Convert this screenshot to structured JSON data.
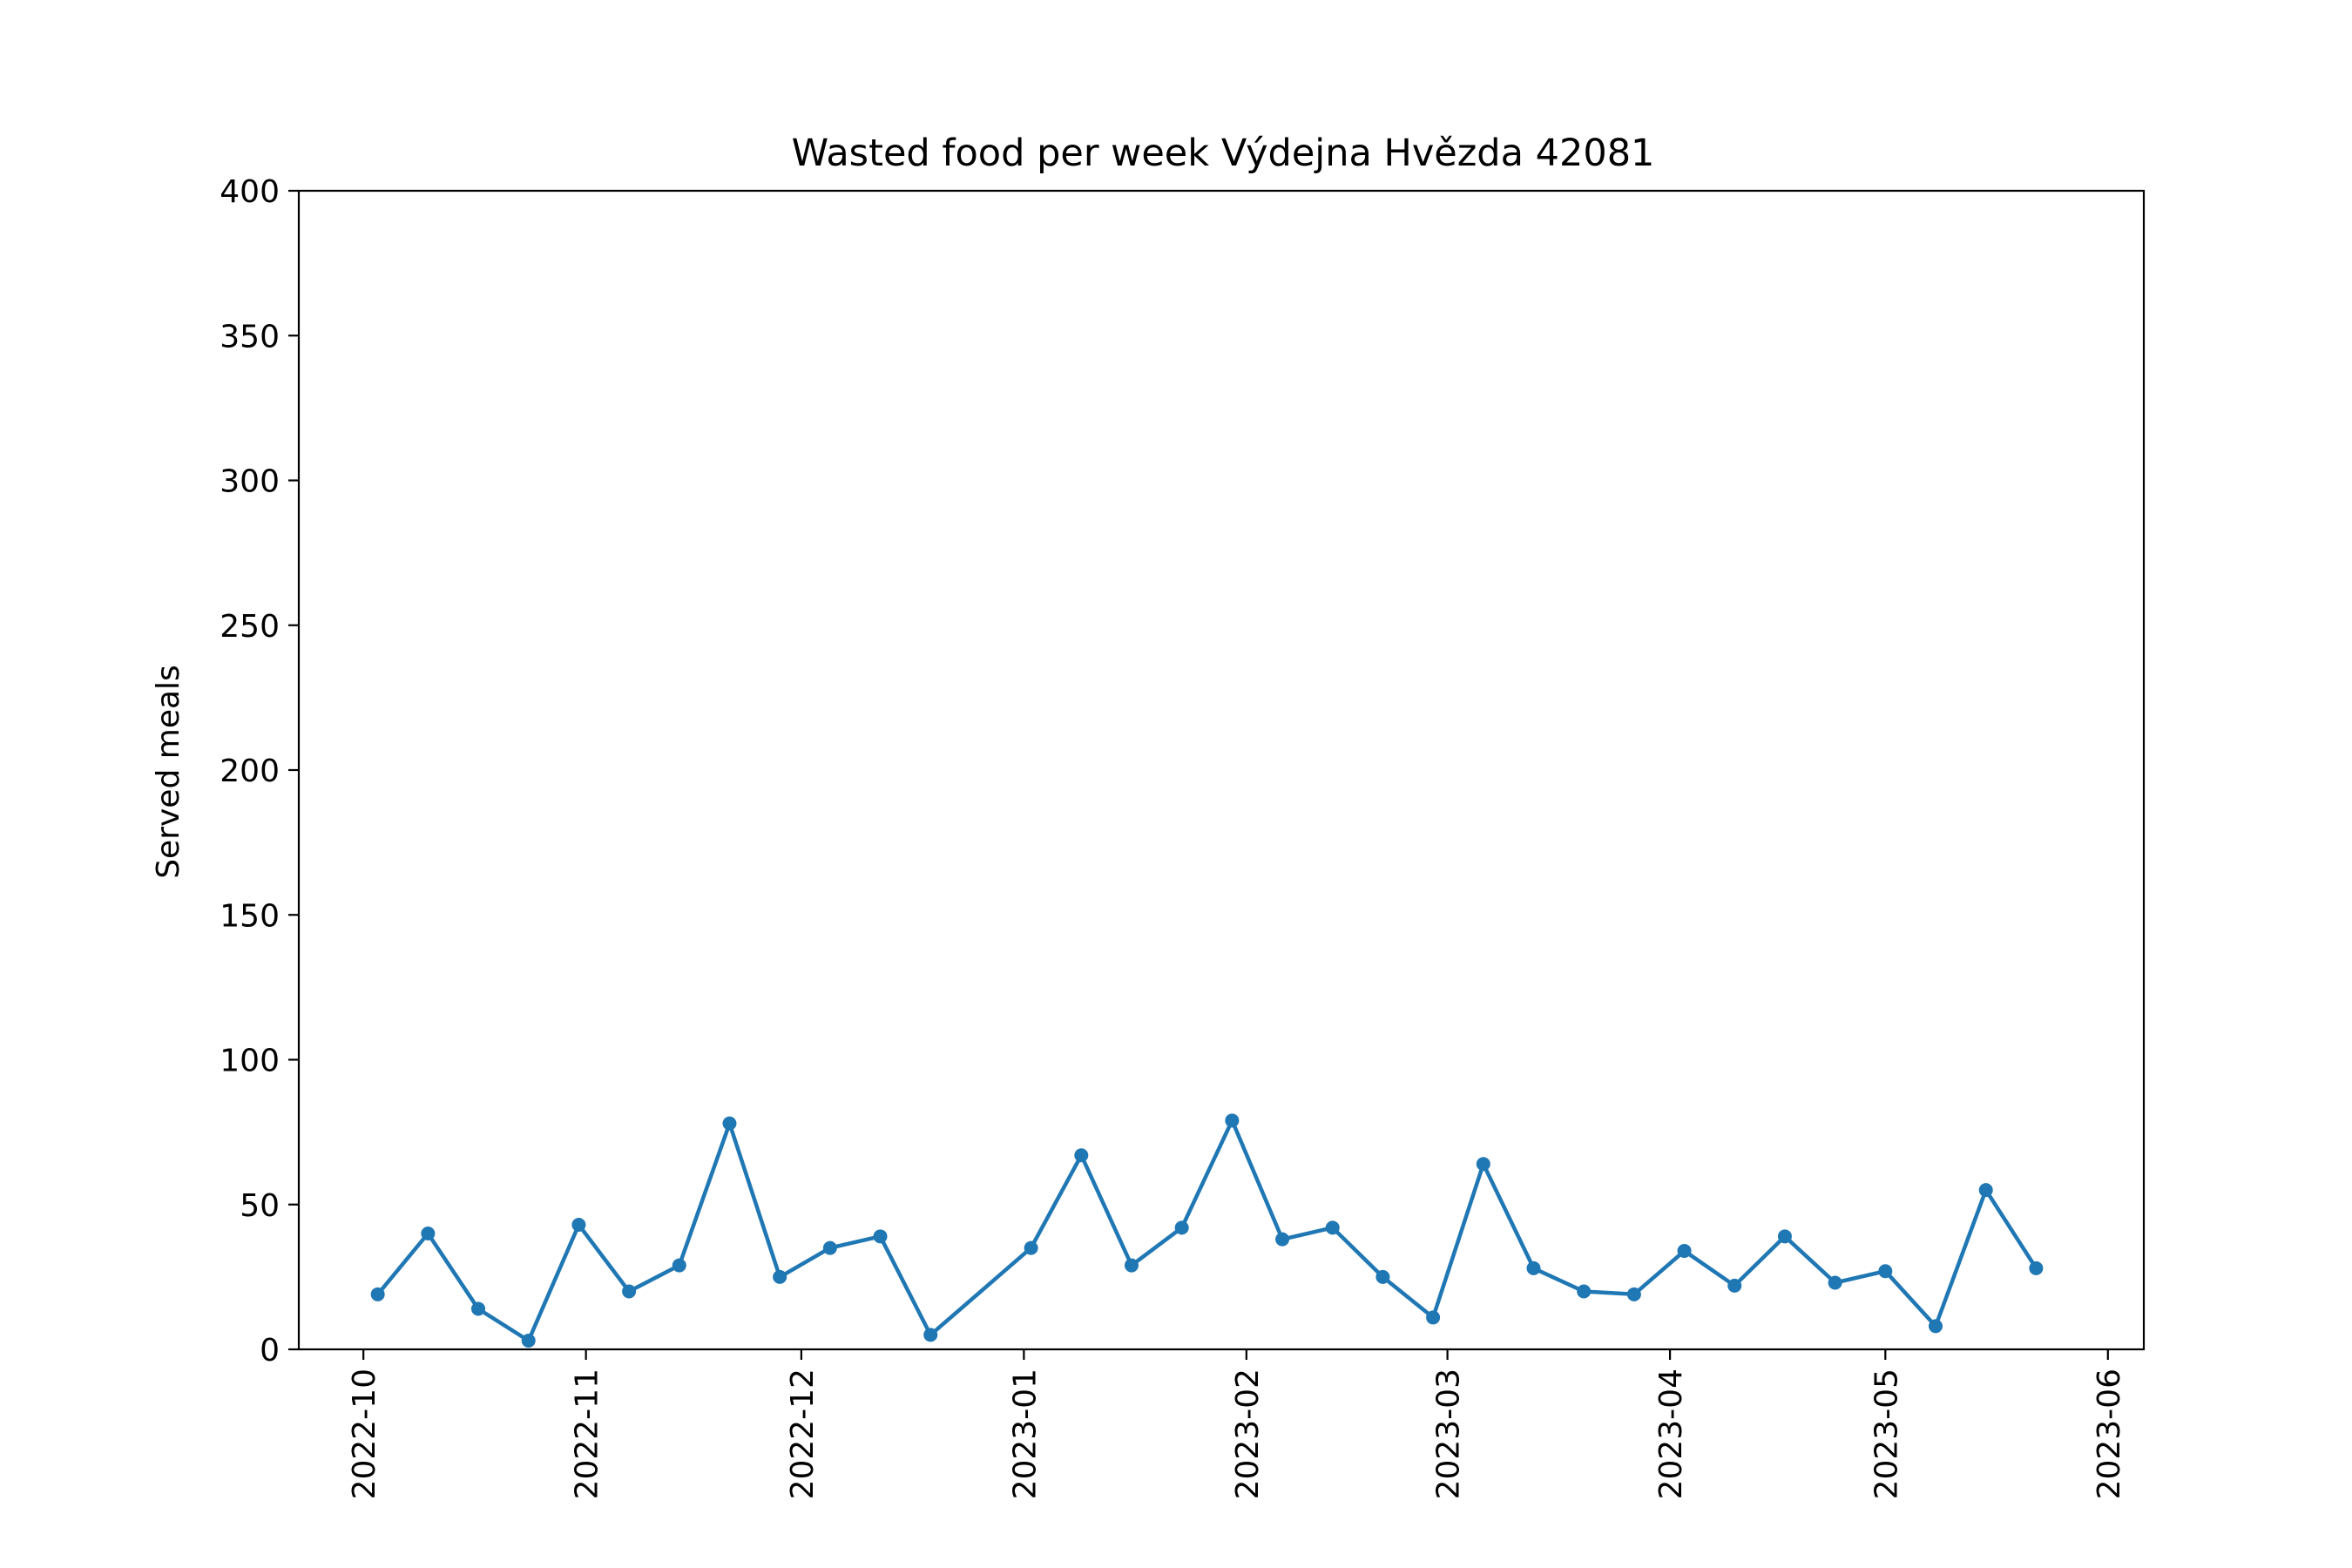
{
  "chart_data": {
    "type": "line",
    "title": "Wasted food per week Výdejna Hvězda 42081",
    "xlabel": "",
    "ylabel": "Served meals",
    "ylim": [
      0,
      400
    ],
    "xlim": [
      "2022-09-22",
      "2023-06-06"
    ],
    "grid": false,
    "color": "#1f77b4",
    "y_ticks": [
      0,
      50,
      100,
      150,
      200,
      250,
      300,
      350,
      400
    ],
    "x_ticks": [
      "2022-10",
      "2022-11",
      "2022-12",
      "2023-01",
      "2023-02",
      "2023-03",
      "2023-04",
      "2023-05",
      "2023-06"
    ],
    "series": [
      {
        "x": [
          "2022-10-03",
          "2022-10-10",
          "2022-10-17",
          "2022-10-24",
          "2022-10-31",
          "2022-11-07",
          "2022-11-14",
          "2022-11-21",
          "2022-11-28",
          "2022-12-05",
          "2022-12-12",
          "2022-12-19",
          "2023-01-02",
          "2023-01-09",
          "2023-01-16",
          "2023-01-23",
          "2023-01-30",
          "2023-02-06",
          "2023-02-13",
          "2023-02-20",
          "2023-02-27",
          "2023-03-06",
          "2023-03-13",
          "2023-03-20",
          "2023-03-27",
          "2023-04-03",
          "2023-04-10",
          "2023-04-17",
          "2023-04-24",
          "2023-05-01",
          "2023-05-08",
          "2023-05-15",
          "2023-05-22"
        ],
        "values": [
          19,
          40,
          14,
          3,
          43,
          20,
          29,
          78,
          25,
          35,
          39,
          5,
          35,
          67,
          29,
          42,
          79,
          38,
          42,
          25,
          11,
          64,
          28,
          20,
          19,
          34,
          22,
          39,
          23,
          27,
          8,
          55,
          28
        ]
      }
    ]
  }
}
